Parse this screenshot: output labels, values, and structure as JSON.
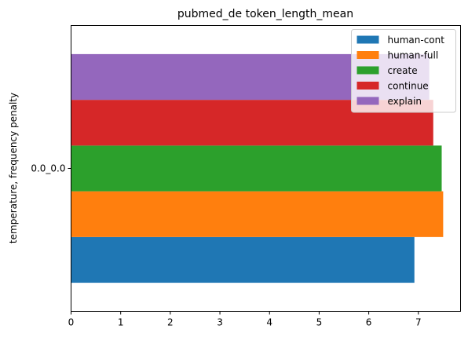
{
  "chart_data": {
    "type": "bar",
    "orientation": "horizontal",
    "title": "pubmed_de token_length_mean",
    "xlabel": "",
    "ylabel": "temperature, frequency penalty",
    "categories": [
      "0.0_0.0"
    ],
    "xlim": [
      0,
      7.85
    ],
    "xticks": [
      0,
      1,
      2,
      3,
      4,
      5,
      6,
      7
    ],
    "legend_position": "top-right",
    "grid": false,
    "series": [
      {
        "name": "human-cont",
        "values": [
          6.92
        ],
        "color": "#1f77b4"
      },
      {
        "name": "human-full",
        "values": [
          7.5
        ],
        "color": "#ff7f0e"
      },
      {
        "name": "create",
        "values": [
          7.47
        ],
        "color": "#2ca02c"
      },
      {
        "name": "continue",
        "values": [
          7.3
        ],
        "color": "#d62728"
      },
      {
        "name": "explain",
        "values": [
          7.22
        ],
        "color": "#9467bd"
      }
    ]
  }
}
